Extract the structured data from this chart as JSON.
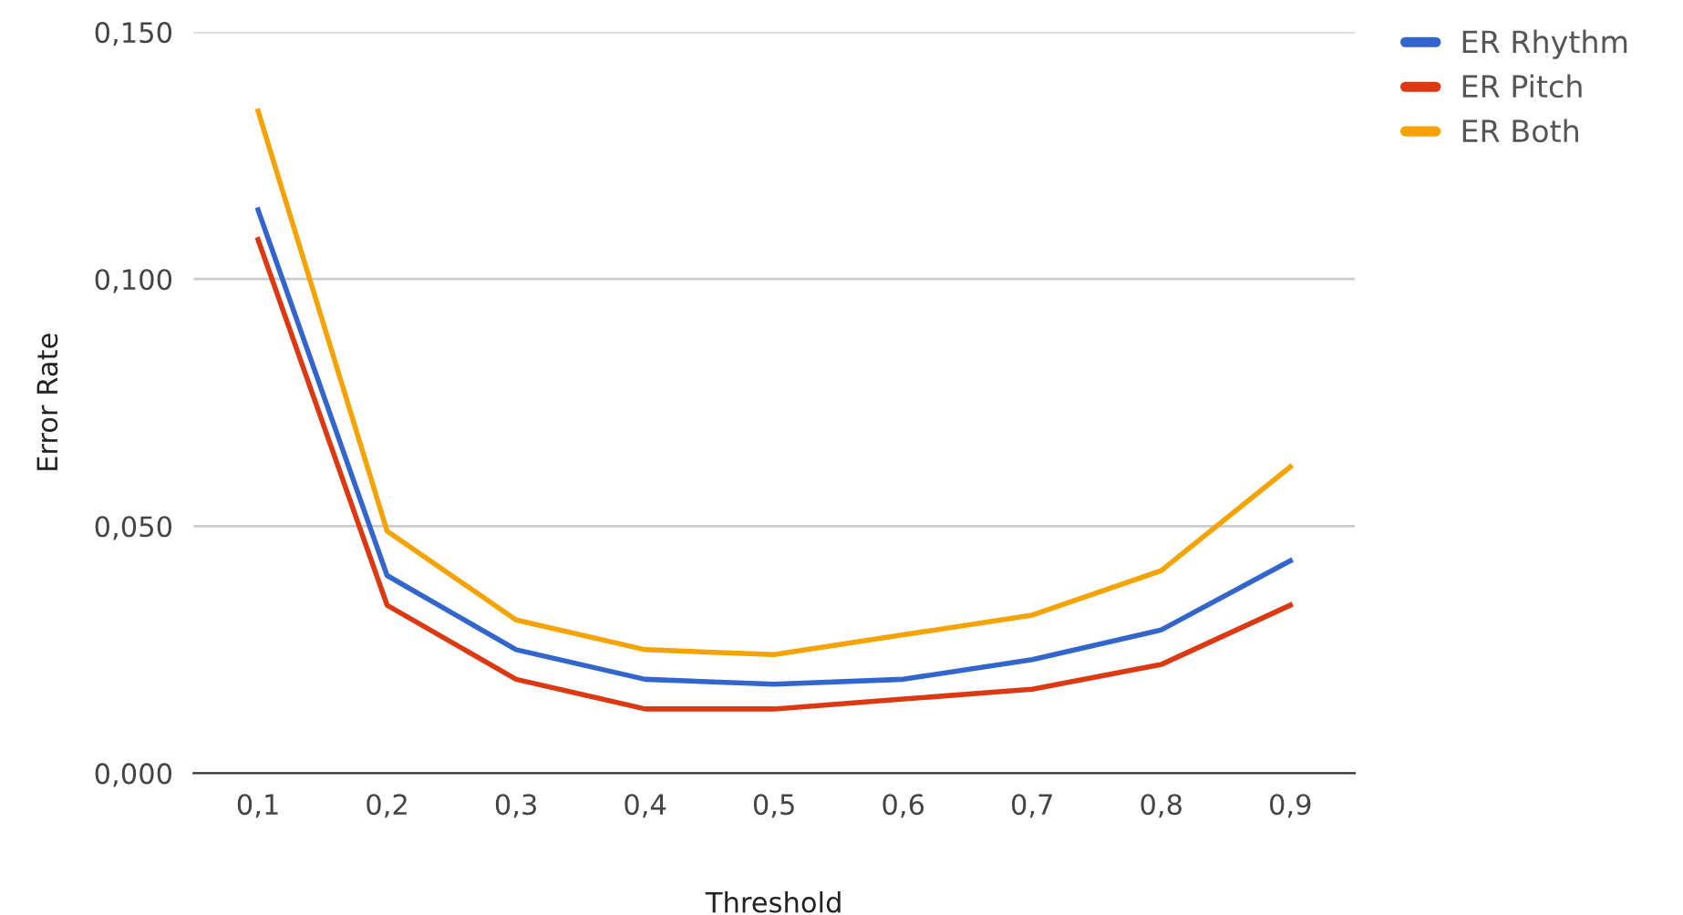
{
  "chart_data": {
    "type": "line",
    "xlabel": "Threshold",
    "ylabel": "Error Rate",
    "categories": [
      "0,1",
      "0,2",
      "0,3",
      "0,4",
      "0,5",
      "0,6",
      "0,7",
      "0,8",
      "0,9"
    ],
    "series": [
      {
        "name": "ER Rhythm",
        "color": "#3366cc",
        "values": [
          0.114,
          0.04,
          0.025,
          0.019,
          0.018,
          0.019,
          0.023,
          0.029,
          0.043
        ]
      },
      {
        "name": "ER Pitch",
        "color": "#dc3912",
        "values": [
          0.108,
          0.034,
          0.019,
          0.013,
          0.013,
          0.015,
          0.017,
          0.022,
          0.034
        ]
      },
      {
        "name": "ER Both",
        "color": "#f4a300",
        "values": [
          0.134,
          0.049,
          0.031,
          0.025,
          0.024,
          0.028,
          0.032,
          0.041,
          0.062
        ]
      }
    ],
    "ylim": [
      0,
      0.15
    ],
    "yticks": [
      {
        "value": 0,
        "label": "0,000"
      },
      {
        "value": 0.05,
        "label": "0,050"
      },
      {
        "value": 0.1,
        "label": "0,100"
      },
      {
        "value": 0.15,
        "label": "0,150"
      }
    ],
    "grid": "y",
    "legend": "top right",
    "marker": "none",
    "line_style": "solid"
  }
}
